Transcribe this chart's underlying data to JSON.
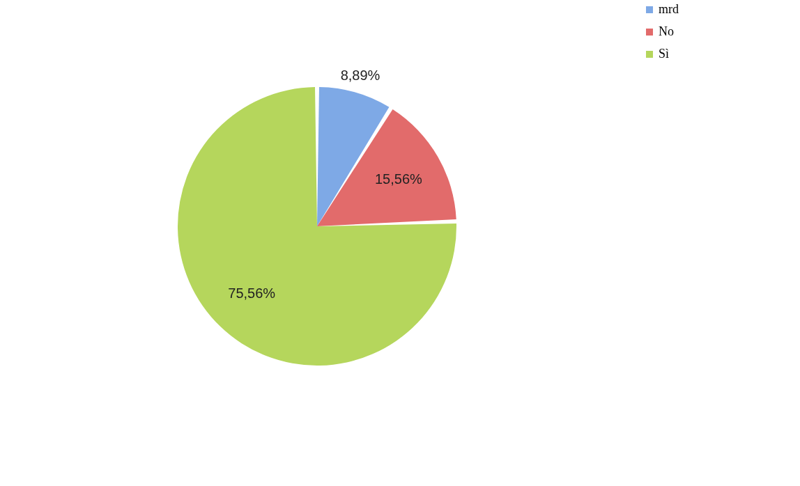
{
  "chart_data": {
    "type": "pie",
    "categories": [
      "mrd",
      "No",
      "Sì"
    ],
    "values": [
      8.89,
      15.56,
      75.56
    ],
    "colors": [
      "#7ea9e6",
      "#e26b6b",
      "#b5d65c"
    ],
    "value_labels": [
      "8,89%",
      "15,56%",
      "75,56%"
    ],
    "legend": "right"
  }
}
